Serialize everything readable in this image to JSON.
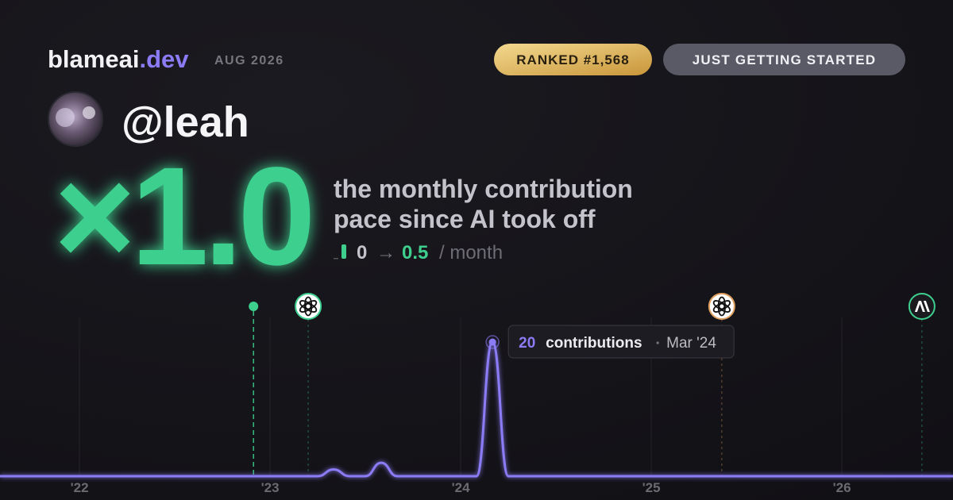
{
  "header": {
    "brand": "blameai",
    "brand_suffix": ".dev",
    "date": "AUG 2026",
    "rank_badge": "RANKED #1,568",
    "level_badge": "JUST GETTING STARTED"
  },
  "profile": {
    "handle": "@leah"
  },
  "stat": {
    "multiplier": "×1.0",
    "description_lines": [
      "the monthly contribution",
      "pace since AI took off"
    ],
    "from": 0,
    "arrow": "→",
    "to": 0.5,
    "unit": "/ month"
  },
  "chart_data": {
    "type": "line",
    "x": [
      2021.583,
      2023.25,
      2023.333,
      2023.417,
      2023.5,
      2023.583,
      2023.667,
      2024.083,
      2024.167,
      2024.25,
      2026.583
    ],
    "series": [
      {
        "name": "contributions",
        "color": "#8b7cf6",
        "values": [
          0,
          0,
          1,
          0,
          0,
          2,
          0,
          0,
          20,
          0,
          0
        ]
      }
    ],
    "xlim": [
      2021.583,
      2026.583
    ],
    "ylim": [
      0,
      20
    ],
    "xticks": [
      {
        "value": 2022,
        "label": "'22"
      },
      {
        "value": 2023,
        "label": "'23"
      },
      {
        "value": 2024,
        "label": "'24"
      },
      {
        "value": 2025,
        "label": "'25"
      },
      {
        "value": 2026,
        "label": "'26"
      }
    ],
    "grid": true,
    "events": [
      {
        "x": 2022.913,
        "icon": "dot",
        "color": "#3ecf8e"
      },
      {
        "x": 2023.2,
        "icon": "openai",
        "color": "#3ecf8e"
      },
      {
        "x": 2025.37,
        "icon": "openai",
        "color": "#e0a060"
      },
      {
        "x": 2026.42,
        "icon": "anthropic",
        "color": "#3ecf8e"
      }
    ],
    "tooltip": {
      "point": 8,
      "unit": "contributions",
      "label": "Mar '24"
    }
  }
}
